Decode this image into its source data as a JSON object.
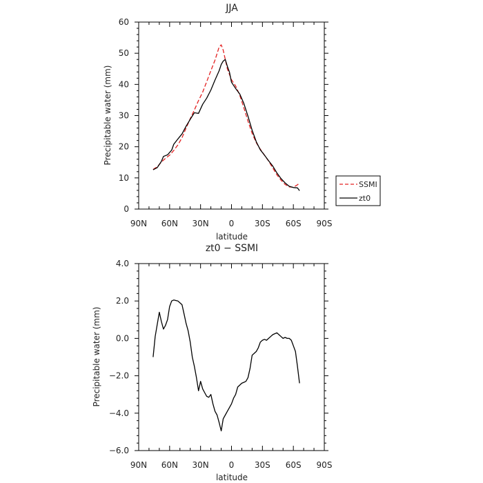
{
  "chart_data": [
    {
      "type": "line",
      "title": "JJA",
      "xlabel": "latitude",
      "ylabel": "Precipitable water (mm)",
      "xlim": [
        90,
        -90
      ],
      "ylim": [
        0,
        60
      ],
      "xticks": [
        90,
        60,
        30,
        0,
        -30,
        -60,
        -90
      ],
      "xtick_labels": [
        "90N",
        "60N",
        "30N",
        "0",
        "30S",
        "60S",
        "90S"
      ],
      "yticks": [
        0,
        10,
        20,
        30,
        40,
        50,
        60
      ],
      "ytick_labels": [
        "0",
        "10",
        "20",
        "30",
        "40",
        "50",
        "60"
      ],
      "grid": false,
      "legend_position": "right",
      "series": [
        {
          "name": "SSMI",
          "color": "#e32020",
          "dash": "dashed",
          "x": [
            76,
            72,
            68,
            64,
            60,
            56,
            52,
            48,
            44,
            40,
            36,
            32,
            28,
            24,
            20,
            16,
            12,
            10,
            8,
            6,
            4,
            0,
            -4,
            -8,
            -12,
            -16,
            -20,
            -24,
            -28,
            -32,
            -36,
            -40,
            -44,
            -48,
            -52,
            -56,
            -60,
            -64,
            -66
          ],
          "y": [
            12.7,
            13.6,
            15.1,
            16.3,
            17.3,
            18.8,
            20.6,
            22.9,
            26.0,
            29.0,
            31.8,
            34.8,
            37.5,
            40.9,
            44.4,
            47.8,
            52.0,
            52.7,
            51.0,
            48.0,
            45.0,
            41.5,
            39.5,
            36.5,
            32.5,
            28.2,
            24.3,
            21.3,
            19.2,
            17.3,
            15.4,
            13.2,
            11.0,
            9.3,
            7.9,
            7.1,
            7.0,
            7.8,
            8.3
          ]
        },
        {
          "name": "zt0",
          "color": "#000000",
          "dash": "solid",
          "x": [
            76,
            72,
            68,
            66,
            62,
            58,
            56,
            52,
            48,
            44,
            40,
            36,
            34,
            32,
            28,
            24,
            20,
            16,
            12,
            10,
            8,
            6,
            4,
            2,
            0,
            -4,
            -8,
            -12,
            -16,
            -20,
            -24,
            -28,
            -32,
            -36,
            -40,
            -44,
            -48,
            -52,
            -56,
            -60,
            -64,
            -66
          ],
          "y": [
            12.6,
            13.3,
            15.3,
            16.9,
            17.4,
            18.9,
            20.8,
            22.5,
            24.1,
            26.6,
            28.8,
            30.9,
            30.8,
            30.7,
            33.6,
            35.6,
            38.2,
            41.4,
            44.4,
            46.4,
            47.5,
            48.0,
            45.8,
            44.0,
            40.7,
            38.7,
            36.9,
            33.9,
            29.8,
            25.3,
            21.6,
            19.0,
            17.3,
            15.5,
            13.8,
            11.6,
            9.8,
            8.4,
            7.3,
            6.9,
            6.8,
            5.9
          ]
        }
      ]
    },
    {
      "type": "line",
      "title": "zt0 − SSMI",
      "xlabel": "latitude",
      "ylabel": "Precipitable water (mm)",
      "xlim": [
        90,
        -90
      ],
      "ylim": [
        -6,
        4
      ],
      "xticks": [
        90,
        60,
        30,
        0,
        -30,
        -60,
        -90
      ],
      "xtick_labels": [
        "90N",
        "60N",
        "30N",
        "0",
        "30S",
        "60S",
        "90S"
      ],
      "yticks": [
        -6,
        -4,
        -2,
        0,
        2,
        4
      ],
      "ytick_labels": [
        "−6.0",
        "−4.0",
        "−2.0",
        "0.0",
        "2.0",
        "4.0"
      ],
      "grid": false,
      "series": [
        {
          "color": "#000000",
          "dash": "solid",
          "x": [
            76,
            74,
            70,
            68,
            66,
            64,
            62,
            60,
            58,
            56,
            52,
            50,
            48,
            46,
            44,
            42,
            40,
            38,
            36,
            34,
            32,
            30,
            28,
            26,
            24,
            22,
            20,
            18,
            16,
            14,
            12,
            10,
            8,
            6,
            4,
            2,
            0,
            -2,
            -4,
            -6,
            -8,
            -10,
            -12,
            -14,
            -16,
            -18,
            -20,
            -22,
            -24,
            -26,
            -28,
            -30,
            -32,
            -34,
            -36,
            -38,
            -40,
            -42,
            -44,
            -46,
            -48,
            -50,
            -52,
            -54,
            -56,
            -58,
            -60,
            -62,
            -64,
            -66
          ],
          "y": [
            -1.0,
            0.1,
            1.4,
            0.9,
            0.5,
            0.7,
            1.0,
            1.7,
            2.0,
            2.05,
            2.0,
            1.9,
            1.8,
            1.3,
            0.8,
            0.4,
            -0.2,
            -1.0,
            -1.5,
            -2.1,
            -2.8,
            -2.3,
            -2.7,
            -2.9,
            -3.1,
            -3.15,
            -3.0,
            -3.5,
            -3.9,
            -4.1,
            -4.5,
            -4.95,
            -4.3,
            -4.1,
            -3.9,
            -3.7,
            -3.5,
            -3.2,
            -3.0,
            -2.6,
            -2.5,
            -2.4,
            -2.35,
            -2.3,
            -2.1,
            -1.6,
            -0.9,
            -0.8,
            -0.7,
            -0.5,
            -0.2,
            -0.1,
            -0.05,
            -0.1,
            0.0,
            0.1,
            0.2,
            0.25,
            0.3,
            0.2,
            0.1,
            0.0,
            0.05,
            0.0,
            0.0,
            -0.1,
            -0.4,
            -0.7,
            -1.5,
            -2.4
          ]
        }
      ]
    }
  ]
}
